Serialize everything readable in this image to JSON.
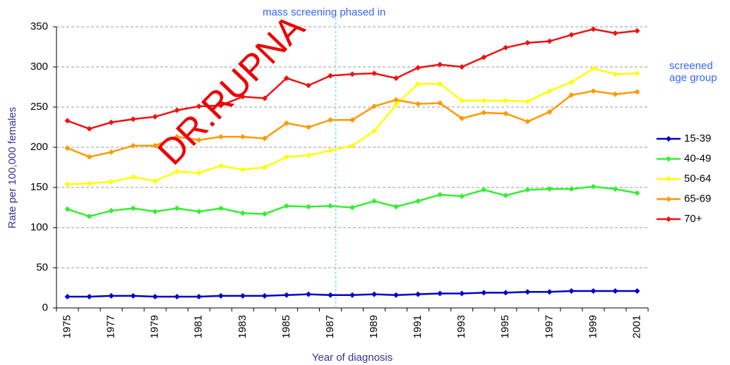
{
  "chart_data": {
    "type": "line",
    "title_y": "Rate per 100,000 females",
    "title_x": "Year of diagnosis",
    "annotations": [
      "mass screening phased in",
      "screened age group"
    ],
    "watermark": "DR.RUPNA",
    "categories": [
      "1975",
      null,
      "1977",
      null,
      "1979",
      null,
      "1981",
      null,
      "1983",
      null,
      "1985",
      null,
      "1987",
      null,
      "1989",
      null,
      "1991",
      null,
      "1993",
      null,
      "1995",
      null,
      "1997",
      null,
      "1999",
      null,
      "2001"
    ],
    "ylim": [
      0,
      350
    ],
    "yticks": [
      0,
      50,
      100,
      150,
      200,
      250,
      300,
      350
    ],
    "grid": true,
    "legend": "right",
    "series": [
      {
        "name": "15-39",
        "color": "#0000cc",
        "values": [
          14,
          14,
          15,
          15,
          14,
          14,
          14,
          15,
          15,
          15,
          16,
          17,
          16,
          16,
          17,
          16,
          17,
          18,
          18,
          19,
          19,
          20,
          20,
          21,
          21,
          21,
          21
        ]
      },
      {
        "name": "40-49",
        "color": "#33ee33",
        "values": [
          123,
          114,
          121,
          124,
          120,
          124,
          120,
          124,
          118,
          117,
          127,
          126,
          127,
          125,
          133,
          126,
          133,
          141,
          139,
          147,
          140,
          147,
          148,
          148,
          151,
          148,
          143
        ]
      },
      {
        "name": "50-64",
        "color": "#ffff00",
        "values": [
          154,
          155,
          157,
          163,
          158,
          170,
          168,
          177,
          172,
          175,
          188,
          190,
          196,
          202,
          220,
          253,
          279,
          279,
          258,
          258,
          258,
          257,
          270,
          281,
          298,
          291,
          292
        ]
      },
      {
        "name": "65-69",
        "color": "#ff9900",
        "values": [
          199,
          188,
          194,
          202,
          202,
          213,
          209,
          213,
          213,
          211,
          230,
          225,
          234,
          234,
          251,
          259,
          254,
          255,
          236,
          243,
          242,
          232,
          244,
          265,
          270,
          266,
          269
        ]
      },
      {
        "name": "70+",
        "color": "#ee1111",
        "values": [
          233,
          223,
          231,
          235,
          238,
          246,
          251,
          252,
          263,
          261,
          286,
          277,
          289,
          291,
          292,
          286,
          299,
          303,
          300,
          312,
          324,
          330,
          332,
          340,
          347,
          342,
          345
        ]
      }
    ]
  }
}
